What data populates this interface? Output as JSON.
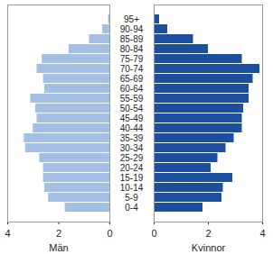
{
  "chart_data": {
    "type": "bar",
    "orientation": "horizontal",
    "categories": [
      "0-4",
      "5-9",
      "10-14",
      "15-19",
      "20-24",
      "25-29",
      "30-34",
      "35-39",
      "40-44",
      "45-49",
      "50-54",
      "55-59",
      "60-64",
      "65-69",
      "70-74",
      "75-79",
      "80-84",
      "85-89",
      "90-94",
      "95+"
    ],
    "series": [
      {
        "name": "Män",
        "color": "#a3bfe3",
        "values": [
          1.75,
          2.4,
          2.55,
          2.6,
          2.6,
          2.75,
          3.3,
          3.35,
          3.0,
          2.85,
          2.9,
          3.1,
          2.55,
          2.6,
          2.85,
          2.65,
          1.6,
          0.8,
          0.28,
          0.05
        ]
      },
      {
        "name": "Kvinnor",
        "color": "#1c4f9e",
        "values": [
          1.8,
          2.5,
          2.55,
          2.9,
          2.1,
          2.35,
          2.65,
          2.95,
          3.25,
          3.25,
          3.3,
          3.5,
          3.5,
          3.65,
          3.9,
          3.25,
          2.0,
          1.45,
          0.5,
          0.2
        ]
      }
    ],
    "xlim": [
      0,
      4
    ],
    "xticks": [
      0,
      2,
      4
    ],
    "grid": false
  }
}
